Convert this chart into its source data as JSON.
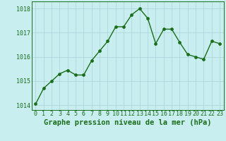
{
  "x": [
    0,
    1,
    2,
    3,
    4,
    5,
    6,
    7,
    8,
    9,
    10,
    11,
    12,
    13,
    14,
    15,
    16,
    17,
    18,
    19,
    20,
    21,
    22,
    23
  ],
  "y": [
    1014.05,
    1014.7,
    1015.0,
    1015.3,
    1015.45,
    1015.25,
    1015.25,
    1015.85,
    1016.25,
    1016.65,
    1017.25,
    1017.25,
    1017.75,
    1018.0,
    1017.6,
    1016.55,
    1017.15,
    1017.15,
    1016.6,
    1016.1,
    1016.0,
    1015.9,
    1016.65,
    1016.55
  ],
  "line_color": "#1a6e1a",
  "marker_color": "#1a6e1a",
  "bg_color": "#c8eef0",
  "grid_color": "#aad4d8",
  "xlabel": "Graphe pression niveau de la mer (hPa)",
  "ylabel": "",
  "xlim": [
    -0.5,
    23.5
  ],
  "ylim": [
    1013.8,
    1018.3
  ],
  "yticks": [
    1014,
    1015,
    1016,
    1017,
    1018
  ],
  "xticks": [
    0,
    1,
    2,
    3,
    4,
    5,
    6,
    7,
    8,
    9,
    10,
    11,
    12,
    13,
    14,
    15,
    16,
    17,
    18,
    19,
    20,
    21,
    22,
    23
  ],
  "tick_fontsize": 6.0,
  "xlabel_fontsize": 7.5,
  "line_width": 1.0,
  "marker_size": 2.8
}
